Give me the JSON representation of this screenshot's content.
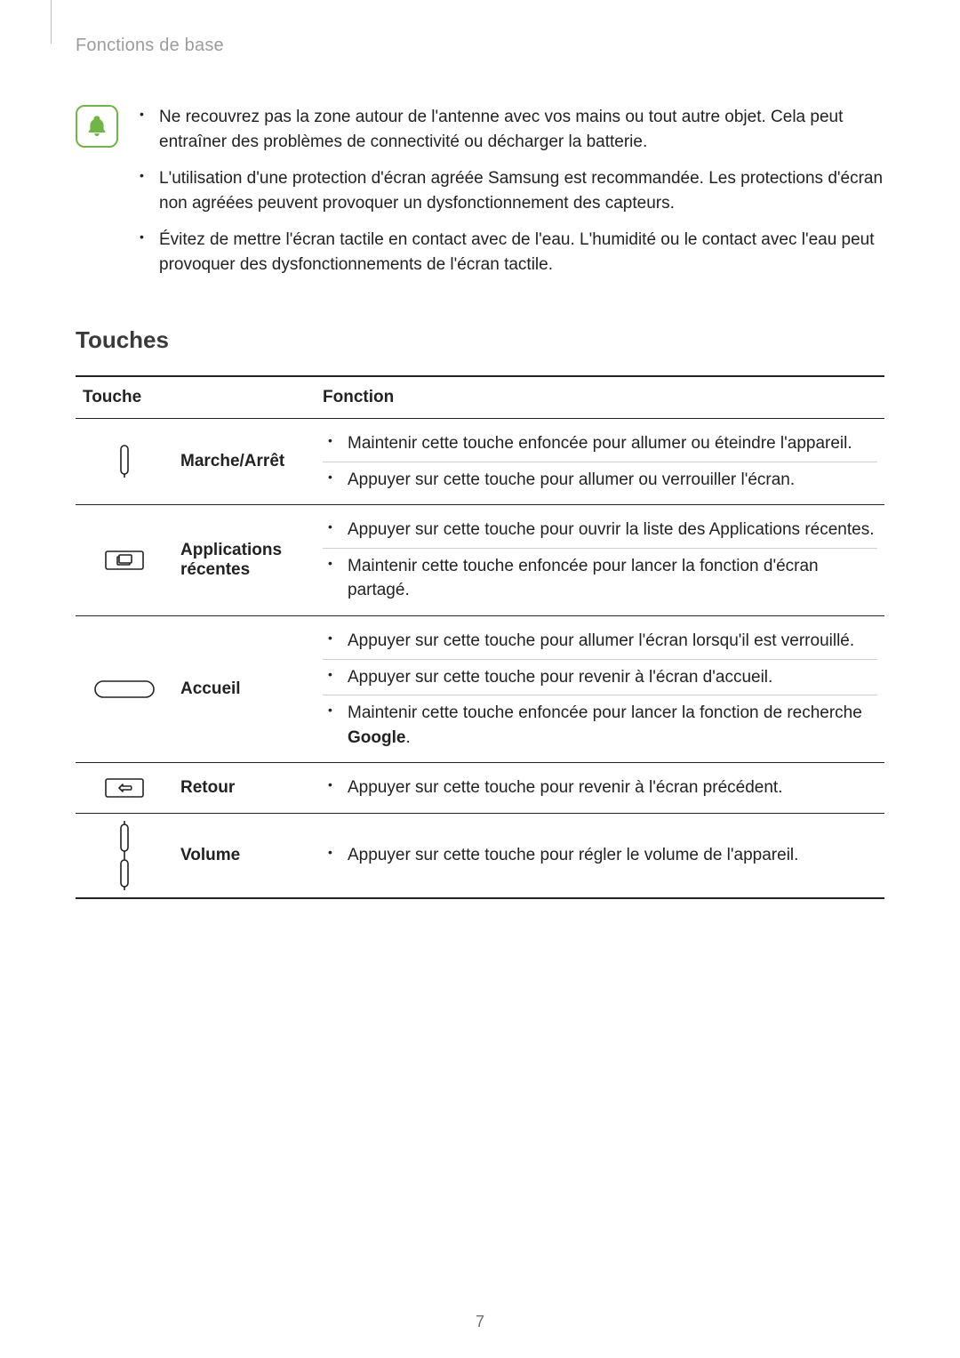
{
  "header": {
    "title": "Fonctions de base"
  },
  "page_number": "7",
  "notes": {
    "items": [
      "Ne recouvrez pas la zone autour de l'antenne avec vos mains ou tout autre objet. Cela peut entraîner des problèmes de connectivité ou décharger la batterie.",
      "L'utilisation d'une protection d'écran agréée Samsung est recommandée. Les protections d'écran non agréées peuvent provoquer un dysfonctionnement des capteurs.",
      "Évitez de mettre l'écran tactile en contact avec de l'eau. L'humidité ou le contact avec l'eau peut provoquer des dysfonctionnements de l'écran tactile."
    ],
    "icon_color": "#6fb644"
  },
  "section": {
    "heading": "Touches"
  },
  "table": {
    "headers": {
      "key": "Touche",
      "function": "Fonction"
    },
    "rows": [
      {
        "icon": "power",
        "name": "Marche/Arrêt",
        "functions": [
          "Maintenir cette touche enfoncée pour allumer ou éteindre l'appareil.",
          "Appuyer sur cette touche pour allumer ou verrouiller l'écran."
        ]
      },
      {
        "icon": "recents",
        "name": "Applications récentes",
        "functions": [
          "Appuyer sur cette touche pour ouvrir la liste des Applications récentes.",
          "Maintenir cette touche enfoncée pour lancer la fonction d'écran partagé."
        ]
      },
      {
        "icon": "home",
        "name": "Accueil",
        "functions": [
          "Appuyer sur cette touche pour allumer l'écran lorsqu'il est verrouillé.",
          "Appuyer sur cette touche pour revenir à l'écran d'accueil.",
          "Maintenir cette touche enfoncée pour lancer la fonction de recherche <b>Google</b>."
        ]
      },
      {
        "icon": "back",
        "name": "Retour",
        "functions": [
          "Appuyer sur cette touche pour revenir à l'écran précédent."
        ]
      },
      {
        "icon": "volume",
        "name": "Volume",
        "functions": [
          "Appuyer sur cette touche pour régler le volume de l'appareil."
        ]
      }
    ]
  }
}
